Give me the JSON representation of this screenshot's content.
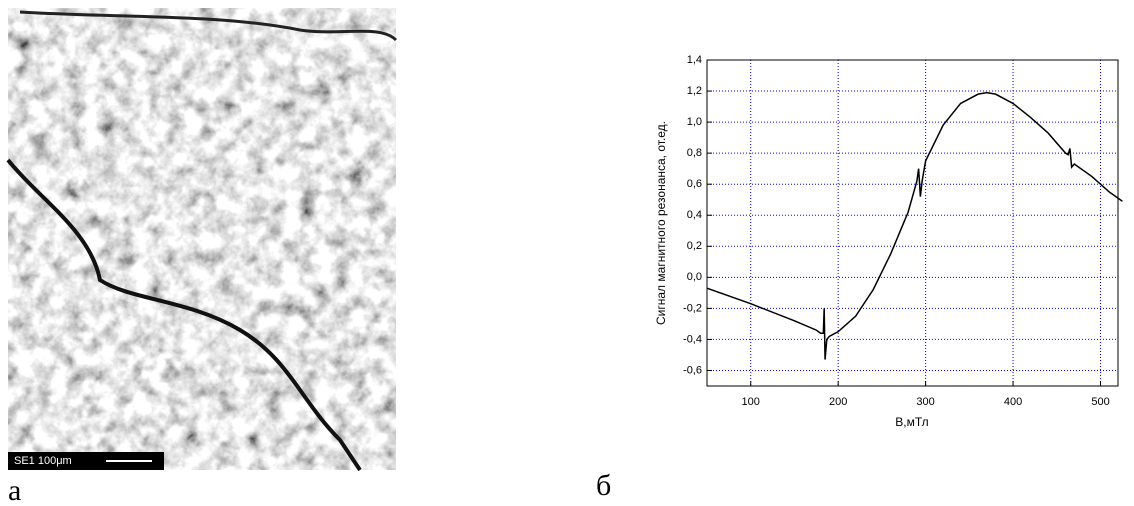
{
  "photo": {
    "scale_label": "SE1 100μm"
  },
  "panel_labels": [
    "а",
    "б"
  ],
  "chart_data": {
    "type": "line",
    "x_label": "B,мТл",
    "y_label": "Сигнал магнитного резонанса, от.ед.",
    "x": [
      50,
      100,
      150,
      175,
      180,
      183,
      184,
      185,
      187,
      190,
      200,
      220,
      240,
      260,
      280,
      290,
      292,
      294,
      296,
      300,
      320,
      340,
      360,
      370,
      380,
      400,
      420,
      440,
      460,
      463,
      465,
      467,
      470,
      490,
      510,
      525
    ],
    "series": [
      {
        "color": "#000000",
        "values": [
          -0.07,
          -0.17,
          -0.28,
          -0.34,
          -0.36,
          -0.36,
          -0.2,
          -0.53,
          -0.4,
          -0.38,
          -0.35,
          -0.25,
          -0.08,
          0.15,
          0.42,
          0.62,
          0.7,
          0.52,
          0.62,
          0.75,
          0.98,
          1.12,
          1.18,
          1.19,
          1.18,
          1.12,
          1.03,
          0.93,
          0.8,
          0.79,
          0.83,
          0.71,
          0.73,
          0.65,
          0.55,
          0.49
        ]
      }
    ],
    "xlim": [
      50,
      520
    ],
    "ylim": [
      -0.7,
      1.4
    ],
    "xticks": [
      100,
      200,
      300,
      400,
      500
    ],
    "yticks": [
      {
        "value": -0.6,
        "label": "-0,6"
      },
      {
        "value": -0.4,
        "label": "-0,4"
      },
      {
        "value": -0.2,
        "label": "-0,2"
      },
      {
        "value": 0,
        "label": "0,0"
      },
      {
        "value": 0.2,
        "label": "0,2"
      },
      {
        "value": 0.4,
        "label": "0,4"
      },
      {
        "value": 0.6,
        "label": "0,6"
      },
      {
        "value": 0.8,
        "label": "0,8"
      },
      {
        "value": 1.0,
        "label": "1,0"
      },
      {
        "value": 1.2,
        "label": "1,2"
      },
      {
        "value": 1.4,
        "label": "1,4"
      }
    ],
    "grid": true,
    "grid_color": "#0000ff"
  }
}
